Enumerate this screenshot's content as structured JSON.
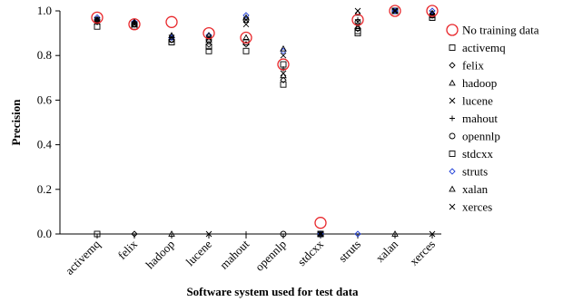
{
  "chart_data": {
    "type": "scatter",
    "xlabel": "Software system used for test data",
    "ylabel": "Precision",
    "ylim": [
      0,
      1
    ],
    "yticks": [
      "0.0",
      "0.2",
      "0.4",
      "0.6",
      "0.8",
      "1.0"
    ],
    "ytick_values": [
      0,
      0.2,
      0.4,
      0.6,
      0.8,
      1.0
    ],
    "categories": [
      "activemq",
      "felix",
      "hadoop",
      "lucene",
      "mahout",
      "opennlp",
      "stdcxx",
      "struts",
      "xalan",
      "xerces"
    ],
    "legend_position": "right",
    "grid": false,
    "series": [
      {
        "name": "No training data",
        "marker": "big-circle",
        "color": "#e8262a",
        "values": [
          0.97,
          0.94,
          0.95,
          0.9,
          0.88,
          0.76,
          0.05,
          0.96,
          1.0,
          1.0
        ]
      },
      {
        "name": "activemq",
        "marker": "square",
        "color": "#000000",
        "values": [
          0.0,
          0.94,
          0.86,
          0.82,
          0.82,
          0.67,
          0.0,
          0.9,
          1.0,
          0.97
        ]
      },
      {
        "name": "felix",
        "marker": "diamond",
        "color": "#000000",
        "values": [
          0.95,
          0.0,
          0.87,
          0.85,
          0.85,
          0.69,
          0.0,
          0.92,
          1.0,
          0.98
        ]
      },
      {
        "name": "hadoop",
        "marker": "triangle",
        "color": "#000000",
        "values": [
          0.96,
          0.94,
          0.0,
          0.87,
          0.88,
          0.71,
          0.0,
          0.93,
          1.0,
          0.98
        ]
      },
      {
        "name": "lucene",
        "marker": "x",
        "color": "#000000",
        "values": [
          0.95,
          0.94,
          0.88,
          0.0,
          0.94,
          0.72,
          0.0,
          0.95,
          1.0,
          0.99
        ]
      },
      {
        "name": "mahout",
        "marker": "plus",
        "color": "#000000",
        "values": [
          0.96,
          0.95,
          0.89,
          0.88,
          0.0,
          0.74,
          0.0,
          0.96,
          1.0,
          0.99
        ]
      },
      {
        "name": "opennlp",
        "marker": "circle",
        "color": "#000000",
        "values": [
          0.96,
          0.94,
          0.87,
          0.87,
          0.96,
          0.0,
          0.0,
          0.95,
          1.0,
          0.98
        ]
      },
      {
        "name": "stdcxx",
        "marker": "square",
        "color": "#000000",
        "values": [
          0.93,
          0.93,
          0.86,
          0.84,
          0.86,
          0.76,
          0.0,
          0.91,
          1.0,
          0.97
        ]
      },
      {
        "name": "struts",
        "marker": "diamond",
        "color": "#1f3fd8",
        "values": [
          0.97,
          0.95,
          0.88,
          0.89,
          0.98,
          0.82,
          0.0,
          0.0,
          1.0,
          1.0
        ]
      },
      {
        "name": "xalan",
        "marker": "triangle",
        "color": "#000000",
        "values": [
          0.96,
          0.95,
          0.89,
          0.89,
          0.97,
          0.83,
          0.0,
          0.99,
          0.0,
          0.99
        ]
      },
      {
        "name": "xerces",
        "marker": "x",
        "color": "#000000",
        "values": [
          0.96,
          0.94,
          0.88,
          0.88,
          0.96,
          0.8,
          0.0,
          1.0,
          1.0,
          0.0
        ]
      }
    ]
  }
}
